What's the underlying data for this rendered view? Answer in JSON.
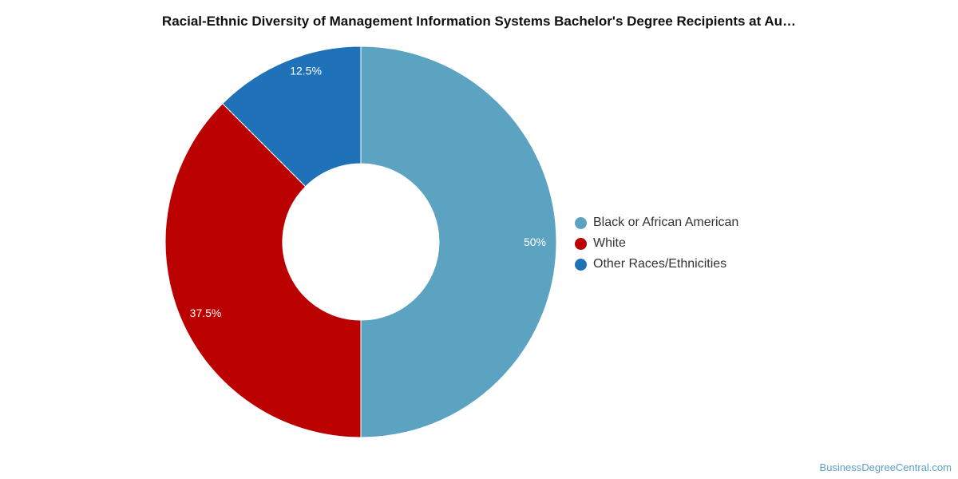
{
  "chart_data": {
    "type": "pie",
    "title": "Racial-Ethnic Diversity of Management Information Systems Bachelor's Degree Recipients at Au…",
    "categories": [
      "Black or African American",
      "White",
      "Other Races/Ethnicities"
    ],
    "values": [
      50,
      37.5,
      12.5
    ],
    "value_labels": [
      "50%",
      "37.5%",
      "12.5%"
    ],
    "colors": [
      "#5ba3c0",
      "#bb0000",
      "#1f72b8"
    ],
    "donut": true,
    "legend_position": "right"
  },
  "credit": "BusinessDegreeCentral.com"
}
